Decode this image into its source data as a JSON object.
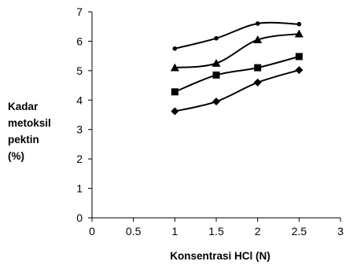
{
  "chart_data": {
    "type": "line",
    "title": "",
    "xlabel": "Konsentrasi HCl (N)",
    "ylabel_lines": [
      "Kadar",
      "metoksil",
      "pektin",
      "(%)"
    ],
    "xlim": [
      0,
      3
    ],
    "ylim": [
      0,
      7
    ],
    "xticks": [
      "0",
      "0.5",
      "1",
      "1.5",
      "2",
      "2.5",
      "3"
    ],
    "yticks": [
      "0",
      "1",
      "2",
      "3",
      "4",
      "5",
      "6",
      "7"
    ],
    "grid": false,
    "legend": "none",
    "line_color": "#000000",
    "x": [
      1,
      1.5,
      2,
      2.5
    ],
    "series": [
      {
        "marker": "circle",
        "values": [
          5.75,
          6.1,
          6.6,
          6.58
        ]
      },
      {
        "marker": "triangle",
        "values": [
          5.1,
          5.25,
          6.05,
          6.25
        ]
      },
      {
        "marker": "square",
        "values": [
          4.28,
          4.85,
          5.1,
          5.48
        ]
      },
      {
        "marker": "diamond",
        "values": [
          3.62,
          3.95,
          4.6,
          5.02
        ]
      }
    ]
  }
}
